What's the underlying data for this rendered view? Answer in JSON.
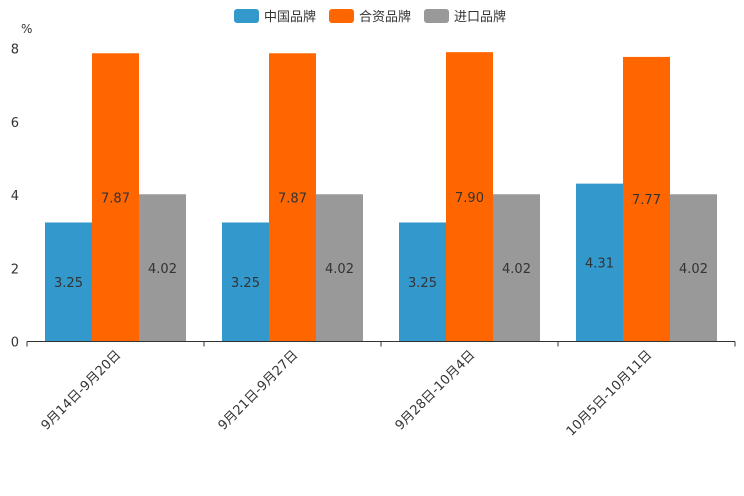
{
  "chart_data": {
    "type": "bar",
    "title": "",
    "ylabel": "%",
    "xlabel": "",
    "ylim": [
      0,
      8
    ],
    "yticks": [
      0,
      2,
      4,
      6,
      8
    ],
    "categories": [
      "9月14日-9月20日",
      "9月21日-9月27日",
      "9月28日-10月4日",
      "10月5日-10月11日"
    ],
    "series": [
      {
        "name": "中国品牌",
        "color": "#3399cc",
        "values": [
          3.25,
          3.25,
          3.25,
          4.31
        ],
        "labels": [
          "3.25",
          "3.25",
          "3.25",
          "4.31"
        ]
      },
      {
        "name": "合资品牌",
        "color": "#ff6600",
        "values": [
          7.87,
          7.87,
          7.9,
          7.77
        ],
        "labels": [
          "7.87",
          "7.87",
          "7.90",
          "7.77"
        ]
      },
      {
        "name": "进口品牌",
        "color": "#999999",
        "values": [
          4.02,
          4.02,
          4.02,
          4.02
        ],
        "labels": [
          "4.02",
          "4.02",
          "4.02",
          "4.02"
        ]
      }
    ],
    "legend_position": "top-center",
    "grid": false
  }
}
